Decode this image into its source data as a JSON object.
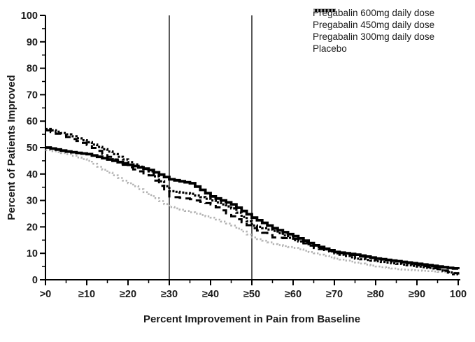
{
  "figure": {
    "background": "#ffffff",
    "axis_color": "#000000",
    "reference_line_color": "#000000"
  },
  "chart_data": {
    "type": "line",
    "step": true,
    "title": "",
    "xlabel": "Percent Improvement in Pain from Baseline",
    "ylabel": "Percent of Patients Improved",
    "xlim": [
      0,
      100
    ],
    "ylim": [
      0,
      100
    ],
    "grid": false,
    "legend_position": "top-right",
    "xticks": [
      0,
      10,
      20,
      30,
      40,
      50,
      60,
      70,
      80,
      90,
      100
    ],
    "xtick_labels": [
      ">0",
      "≥10",
      "≥20",
      "≥30",
      "≥40",
      "≥50",
      "≥60",
      "≥70",
      "≥80",
      "≥90",
      "100"
    ],
    "yticks": [
      0,
      10,
      20,
      30,
      40,
      50,
      60,
      70,
      80,
      90,
      100
    ],
    "ytick_labels": [
      "0",
      "10",
      "20",
      "30",
      "40",
      "50",
      "60",
      "70",
      "80",
      "90",
      "100"
    ],
    "minor_tick_interval": 5,
    "reference_lines_x": [
      30,
      50
    ],
    "x_sample_points": [
      0,
      5,
      10,
      15,
      20,
      25,
      30,
      35,
      40,
      45,
      50,
      55,
      60,
      65,
      70,
      75,
      80,
      85,
      90,
      95,
      100
    ],
    "series": [
      {
        "name": "Pregabalin 600mg daily dose",
        "style": "solid",
        "color": "#000000",
        "values": [
          50,
          48.5,
          47.5,
          45.5,
          43.5,
          41.5,
          38,
          36.5,
          31.5,
          28.5,
          23.5,
          19.5,
          16.5,
          13,
          10.5,
          9.5,
          8,
          7,
          6,
          5,
          4
        ]
      },
      {
        "name": "Pregabalin 450mg daily dose",
        "style": "dense-dotted",
        "color": "#000000",
        "values": [
          57,
          55,
          52,
          48.5,
          44.5,
          41,
          33.5,
          32.5,
          30,
          27,
          20.5,
          18.5,
          15,
          13,
          10,
          8,
          7,
          6,
          5,
          4,
          1.5
        ]
      },
      {
        "name": "Pregabalin 300mg daily dose",
        "style": "dashed",
        "color": "#000000",
        "values": [
          56.5,
          54,
          51,
          46.5,
          42.5,
          39.5,
          31.5,
          30.5,
          28.5,
          24,
          19.5,
          16,
          15.5,
          12,
          10.5,
          9,
          8,
          7,
          5.5,
          4,
          2
        ]
      },
      {
        "name": "Placebo",
        "style": "dotted",
        "color": "#b2b2b2",
        "values": [
          49,
          47.5,
          45,
          40.5,
          36.5,
          32,
          27.5,
          25.5,
          23.5,
          20.5,
          16,
          13.5,
          12,
          10,
          8,
          6.5,
          5,
          4,
          3.5,
          3,
          2.5
        ]
      }
    ]
  }
}
